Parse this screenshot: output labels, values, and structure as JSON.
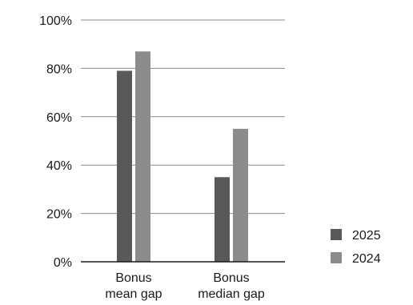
{
  "chart_data": {
    "type": "bar",
    "title": "",
    "xlabel": "",
    "ylabel": "",
    "categories": [
      [
        "Bonus",
        "mean gap"
      ],
      [
        "Bonus",
        "median gap"
      ]
    ],
    "series": [
      {
        "name": "2025",
        "values": [
          79,
          35
        ],
        "color": "#595959"
      },
      {
        "name": "2024",
        "values": [
          87,
          55
        ],
        "color": "#8c8c8c"
      }
    ],
    "ylim": [
      0,
      100
    ],
    "yticks": [
      0,
      20,
      40,
      60,
      80,
      100
    ],
    "ytick_labels": [
      "0%",
      "20%",
      "40%",
      "60%",
      "80%",
      "100%"
    ],
    "grid": true,
    "legend_position": "bottom-right",
    "gridline_color": "#8a8a8a",
    "axis_color": "#1a1a1a"
  }
}
